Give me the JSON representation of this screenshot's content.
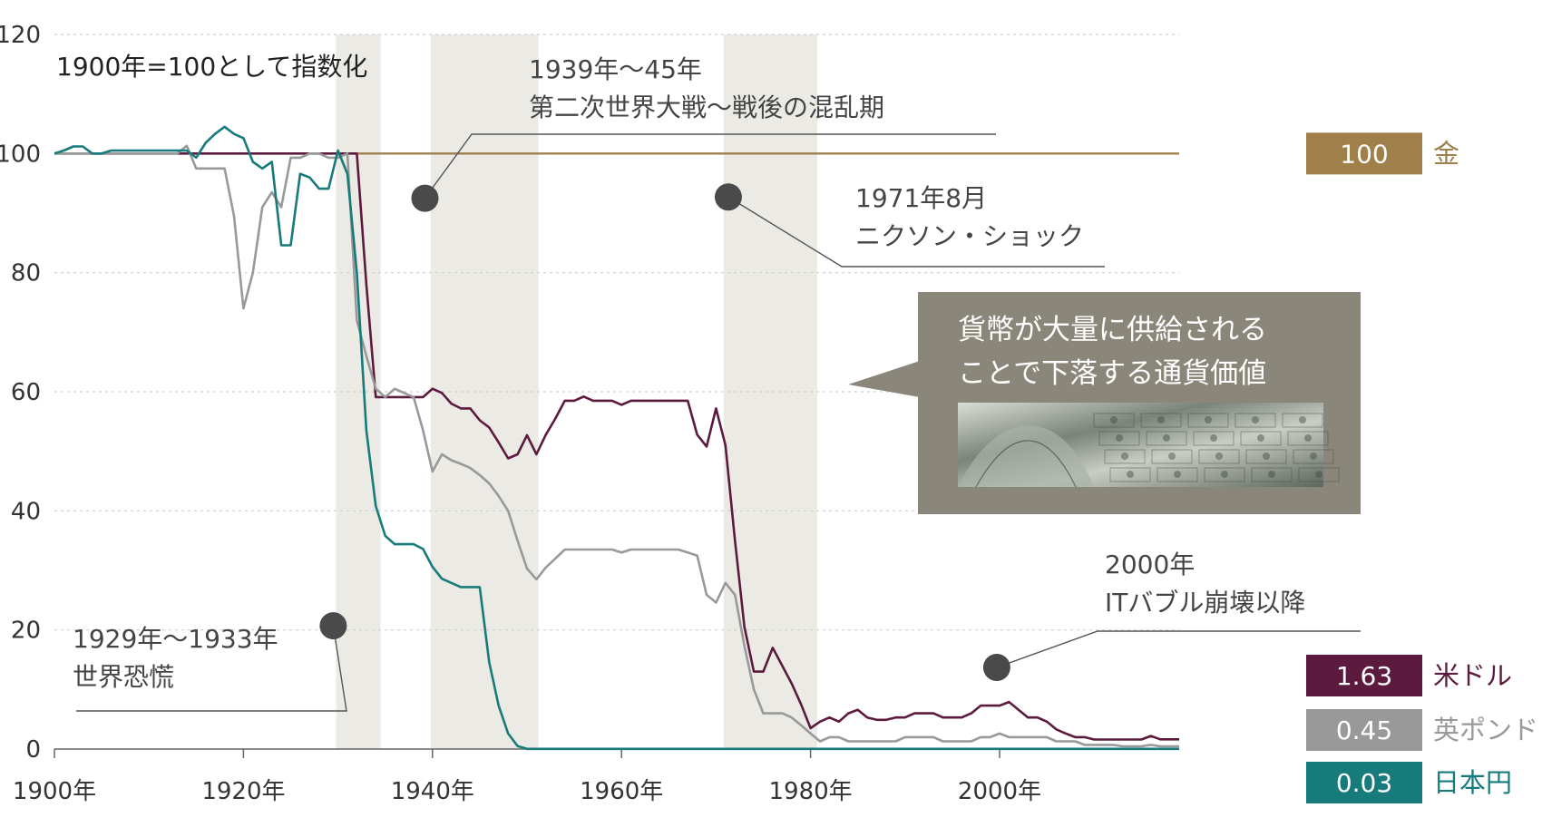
{
  "chart_data": {
    "type": "line",
    "subtitle": "1900年=100として指数化",
    "xlim": [
      1900,
      2019
    ],
    "ylim": [
      0,
      120
    ],
    "y_ticks": [
      0,
      20,
      40,
      60,
      80,
      100,
      120
    ],
    "y_tick_labels": [
      "0",
      "20",
      "40",
      "60",
      "80",
      "100",
      "120"
    ],
    "x_ticks": [
      1900,
      1920,
      1940,
      1960,
      1980,
      2000
    ],
    "x_tick_labels": [
      "1900年",
      "1920年",
      "1940年",
      "1960年",
      "1980年",
      "2000年"
    ],
    "grid": "horizontal dashed",
    "shaded_periods": [
      [
        1929.8,
        1934.5
      ],
      [
        1939.8,
        1951.2
      ],
      [
        1970.8,
        1980.7
      ]
    ],
    "series": [
      {
        "name": "金",
        "value_label": "100",
        "color": "#9f7f4a",
        "points": [
          [
            1900,
            100
          ],
          [
            2019,
            100
          ]
        ]
      },
      {
        "name": "米ドル",
        "value_label": "1.63",
        "color": "#5c1a3e",
        "points": [
          [
            1900,
            100
          ],
          [
            1932,
            100
          ],
          [
            1933,
            78
          ],
          [
            1934,
            59.1
          ],
          [
            1938,
            59.1
          ],
          [
            1939,
            59.1
          ],
          [
            1940,
            60.5
          ],
          [
            1941,
            59.8
          ],
          [
            1942,
            58
          ],
          [
            1943,
            57.2
          ],
          [
            1944,
            57.2
          ],
          [
            1945,
            55.2
          ],
          [
            1946,
            54
          ],
          [
            1947,
            51.5
          ],
          [
            1948,
            48.8
          ],
          [
            1949,
            49.5
          ],
          [
            1950,
            52.7
          ],
          [
            1951,
            49.5
          ],
          [
            1952,
            52.8
          ],
          [
            1953,
            55.5
          ],
          [
            1954,
            58.5
          ],
          [
            1955,
            58.5
          ],
          [
            1956,
            59.2
          ],
          [
            1957,
            58.5
          ],
          [
            1958,
            58.5
          ],
          [
            1959,
            58.5
          ],
          [
            1960,
            57.8
          ],
          [
            1961,
            58.5
          ],
          [
            1962,
            58.5
          ],
          [
            1963,
            58.5
          ],
          [
            1964,
            58.5
          ],
          [
            1965,
            58.5
          ],
          [
            1966,
            58.5
          ],
          [
            1967,
            58.5
          ],
          [
            1968,
            52.8
          ],
          [
            1969,
            50.8
          ],
          [
            1970,
            57.2
          ],
          [
            1971,
            51
          ],
          [
            1972,
            35
          ],
          [
            1973,
            20.5
          ],
          [
            1974,
            13
          ],
          [
            1975,
            13
          ],
          [
            1976,
            17
          ],
          [
            1977,
            14
          ],
          [
            1978,
            11
          ],
          [
            1979,
            7.5
          ],
          [
            1980,
            3.5
          ],
          [
            1981,
            4.6
          ],
          [
            1982,
            5.3
          ],
          [
            1983,
            4.6
          ],
          [
            1984,
            6
          ],
          [
            1985,
            6.6
          ],
          [
            1986,
            5.3
          ],
          [
            1987,
            4.9
          ],
          [
            1988,
            4.9
          ],
          [
            1989,
            5.3
          ],
          [
            1990,
            5.3
          ],
          [
            1991,
            6
          ],
          [
            1992,
            6
          ],
          [
            1993,
            6
          ],
          [
            1994,
            5.3
          ],
          [
            1995,
            5.3
          ],
          [
            1996,
            5.3
          ],
          [
            1997,
            6
          ],
          [
            1998,
            7.3
          ],
          [
            1999,
            7.3
          ],
          [
            2000,
            7.3
          ],
          [
            2001,
            7.9
          ],
          [
            2002,
            6.6
          ],
          [
            2003,
            5.3
          ],
          [
            2004,
            5.3
          ],
          [
            2005,
            4.6
          ],
          [
            2006,
            3.3
          ],
          [
            2007,
            2.6
          ],
          [
            2008,
            2
          ],
          [
            2009,
            2
          ],
          [
            2010,
            1.6
          ],
          [
            2011,
            1.6
          ],
          [
            2012,
            1.6
          ],
          [
            2013,
            1.6
          ],
          [
            2014,
            1.6
          ],
          [
            2015,
            1.6
          ],
          [
            2016,
            2.2
          ],
          [
            2017,
            1.63
          ],
          [
            2018,
            1.63
          ],
          [
            2019,
            1.63
          ]
        ]
      },
      {
        "name": "英ポンド",
        "value_label": "0.45",
        "color": "#999999",
        "points": [
          [
            1900,
            100
          ],
          [
            1912,
            100
          ],
          [
            1913,
            100
          ],
          [
            1914,
            101.3
          ],
          [
            1915,
            97.5
          ],
          [
            1916,
            97.5
          ],
          [
            1917,
            97.5
          ],
          [
            1918,
            97.5
          ],
          [
            1919,
            89.5
          ],
          [
            1920,
            74
          ],
          [
            1921,
            80
          ],
          [
            1922,
            91
          ],
          [
            1923,
            93.5
          ],
          [
            1924,
            91
          ],
          [
            1925,
            99.3
          ],
          [
            1926,
            99.3
          ],
          [
            1927,
            100
          ],
          [
            1928,
            100
          ],
          [
            1929,
            99.3
          ],
          [
            1930,
            99.3
          ],
          [
            1931,
            100
          ],
          [
            1932,
            72
          ],
          [
            1933,
            66
          ],
          [
            1934,
            60.5
          ],
          [
            1935,
            59.1
          ],
          [
            1936,
            60.5
          ],
          [
            1937,
            59.8
          ],
          [
            1938,
            59.1
          ],
          [
            1939,
            53.5
          ],
          [
            1940,
            46.6
          ],
          [
            1941,
            49.5
          ],
          [
            1942,
            48.5
          ],
          [
            1943,
            47.9
          ],
          [
            1944,
            47.2
          ],
          [
            1945,
            46
          ],
          [
            1946,
            44.6
          ],
          [
            1947,
            42.5
          ],
          [
            1948,
            40
          ],
          [
            1949,
            35
          ],
          [
            1950,
            30.3
          ],
          [
            1951,
            28.5
          ],
          [
            1952,
            30.5
          ],
          [
            1953,
            32
          ],
          [
            1954,
            33.5
          ],
          [
            1955,
            33.5
          ],
          [
            1956,
            33.5
          ],
          [
            1957,
            33.5
          ],
          [
            1958,
            33.5
          ],
          [
            1959,
            33.5
          ],
          [
            1960,
            33
          ],
          [
            1961,
            33.5
          ],
          [
            1962,
            33.5
          ],
          [
            1963,
            33.5
          ],
          [
            1964,
            33.5
          ],
          [
            1965,
            33.5
          ],
          [
            1966,
            33.5
          ],
          [
            1967,
            33
          ],
          [
            1968,
            32.5
          ],
          [
            1969,
            25.9
          ],
          [
            1970,
            24.6
          ],
          [
            1971,
            27.9
          ],
          [
            1972,
            25.9
          ],
          [
            1973,
            17.3
          ],
          [
            1974,
            10
          ],
          [
            1975,
            6
          ],
          [
            1976,
            6
          ],
          [
            1977,
            6
          ],
          [
            1978,
            5.3
          ],
          [
            1979,
            4
          ],
          [
            1980,
            2.6
          ],
          [
            1981,
            1.3
          ],
          [
            1982,
            2
          ],
          [
            1983,
            2
          ],
          [
            1984,
            1.3
          ],
          [
            1985,
            1.3
          ],
          [
            1986,
            1.3
          ],
          [
            1987,
            1.3
          ],
          [
            1988,
            1.3
          ],
          [
            1989,
            1.3
          ],
          [
            1990,
            2
          ],
          [
            1991,
            2
          ],
          [
            1992,
            2
          ],
          [
            1993,
            2
          ],
          [
            1994,
            1.3
          ],
          [
            1995,
            1.3
          ],
          [
            1996,
            1.3
          ],
          [
            1997,
            1.3
          ],
          [
            1998,
            2
          ],
          [
            1999,
            2
          ],
          [
            2000,
            2.6
          ],
          [
            2001,
            2
          ],
          [
            2002,
            2
          ],
          [
            2003,
            2
          ],
          [
            2004,
            2
          ],
          [
            2005,
            2
          ],
          [
            2006,
            1.3
          ],
          [
            2007,
            1.3
          ],
          [
            2008,
            1.3
          ],
          [
            2009,
            0.7
          ],
          [
            2010,
            0.7
          ],
          [
            2011,
            0.7
          ],
          [
            2012,
            0.7
          ],
          [
            2013,
            0.45
          ],
          [
            2014,
            0.45
          ],
          [
            2015,
            0.45
          ],
          [
            2016,
            0.7
          ],
          [
            2017,
            0.45
          ],
          [
            2018,
            0.45
          ],
          [
            2019,
            0.45
          ]
        ]
      },
      {
        "name": "日本円",
        "value_label": "0.03",
        "color": "#177a7b",
        "points": [
          [
            1900,
            100
          ],
          [
            1901,
            100.5
          ],
          [
            1902,
            101.2
          ],
          [
            1903,
            101.2
          ],
          [
            1904,
            100
          ],
          [
            1905,
            100
          ],
          [
            1906,
            100.5
          ],
          [
            1907,
            100.5
          ],
          [
            1908,
            100.5
          ],
          [
            1909,
            100.5
          ],
          [
            1910,
            100.5
          ],
          [
            1911,
            100.5
          ],
          [
            1912,
            100.5
          ],
          [
            1913,
            100.5
          ],
          [
            1914,
            100.5
          ],
          [
            1915,
            99.3
          ],
          [
            1916,
            101.8
          ],
          [
            1917,
            103.3
          ],
          [
            1918,
            104.5
          ],
          [
            1919,
            103.3
          ],
          [
            1920,
            102.6
          ],
          [
            1921,
            98.6
          ],
          [
            1922,
            97.5
          ],
          [
            1923,
            98.6
          ],
          [
            1924,
            84.6
          ],
          [
            1925,
            84.6
          ],
          [
            1926,
            96.6
          ],
          [
            1927,
            96
          ],
          [
            1928,
            94.1
          ],
          [
            1929,
            94.1
          ],
          [
            1930,
            100.5
          ],
          [
            1931,
            96.6
          ],
          [
            1932,
            80
          ],
          [
            1933,
            53.5
          ],
          [
            1934,
            40.8
          ],
          [
            1935,
            35.8
          ],
          [
            1936,
            34.4
          ],
          [
            1937,
            34.4
          ],
          [
            1938,
            34.4
          ],
          [
            1939,
            33.6
          ],
          [
            1940,
            30.6
          ],
          [
            1941,
            28.6
          ],
          [
            1942,
            27.9
          ],
          [
            1943,
            27.2
          ],
          [
            1944,
            27.2
          ],
          [
            1945,
            27.2
          ],
          [
            1946,
            14.6
          ],
          [
            1947,
            7.3
          ],
          [
            1948,
            2.6
          ],
          [
            1949,
            0.5
          ],
          [
            1950,
            0.03
          ],
          [
            2019,
            0.03
          ]
        ]
      }
    ],
    "annotations": [
      {
        "lines": [
          "1939年〜45年",
          "第二次世界大戦〜戦後の混乱期"
        ],
        "marker": [
          1939.2,
          92.5
        ]
      },
      {
        "lines": [
          "1971年8月",
          "ニクソン・ショック"
        ],
        "marker": [
          1971.3,
          92.7
        ]
      },
      {
        "lines": [
          "1929年〜1933年",
          "世界恐慌"
        ],
        "marker": [
          1929.5,
          20.7
        ]
      },
      {
        "lines": [
          "2000年",
          "ITバブル崩壊以降"
        ],
        "marker": [
          1999.7,
          13.7
        ]
      }
    ],
    "callout": {
      "lines": [
        "貨幣が大量に供給される",
        "ことで下落する通貨価値"
      ],
      "image": "dollar-bills-photo"
    }
  }
}
